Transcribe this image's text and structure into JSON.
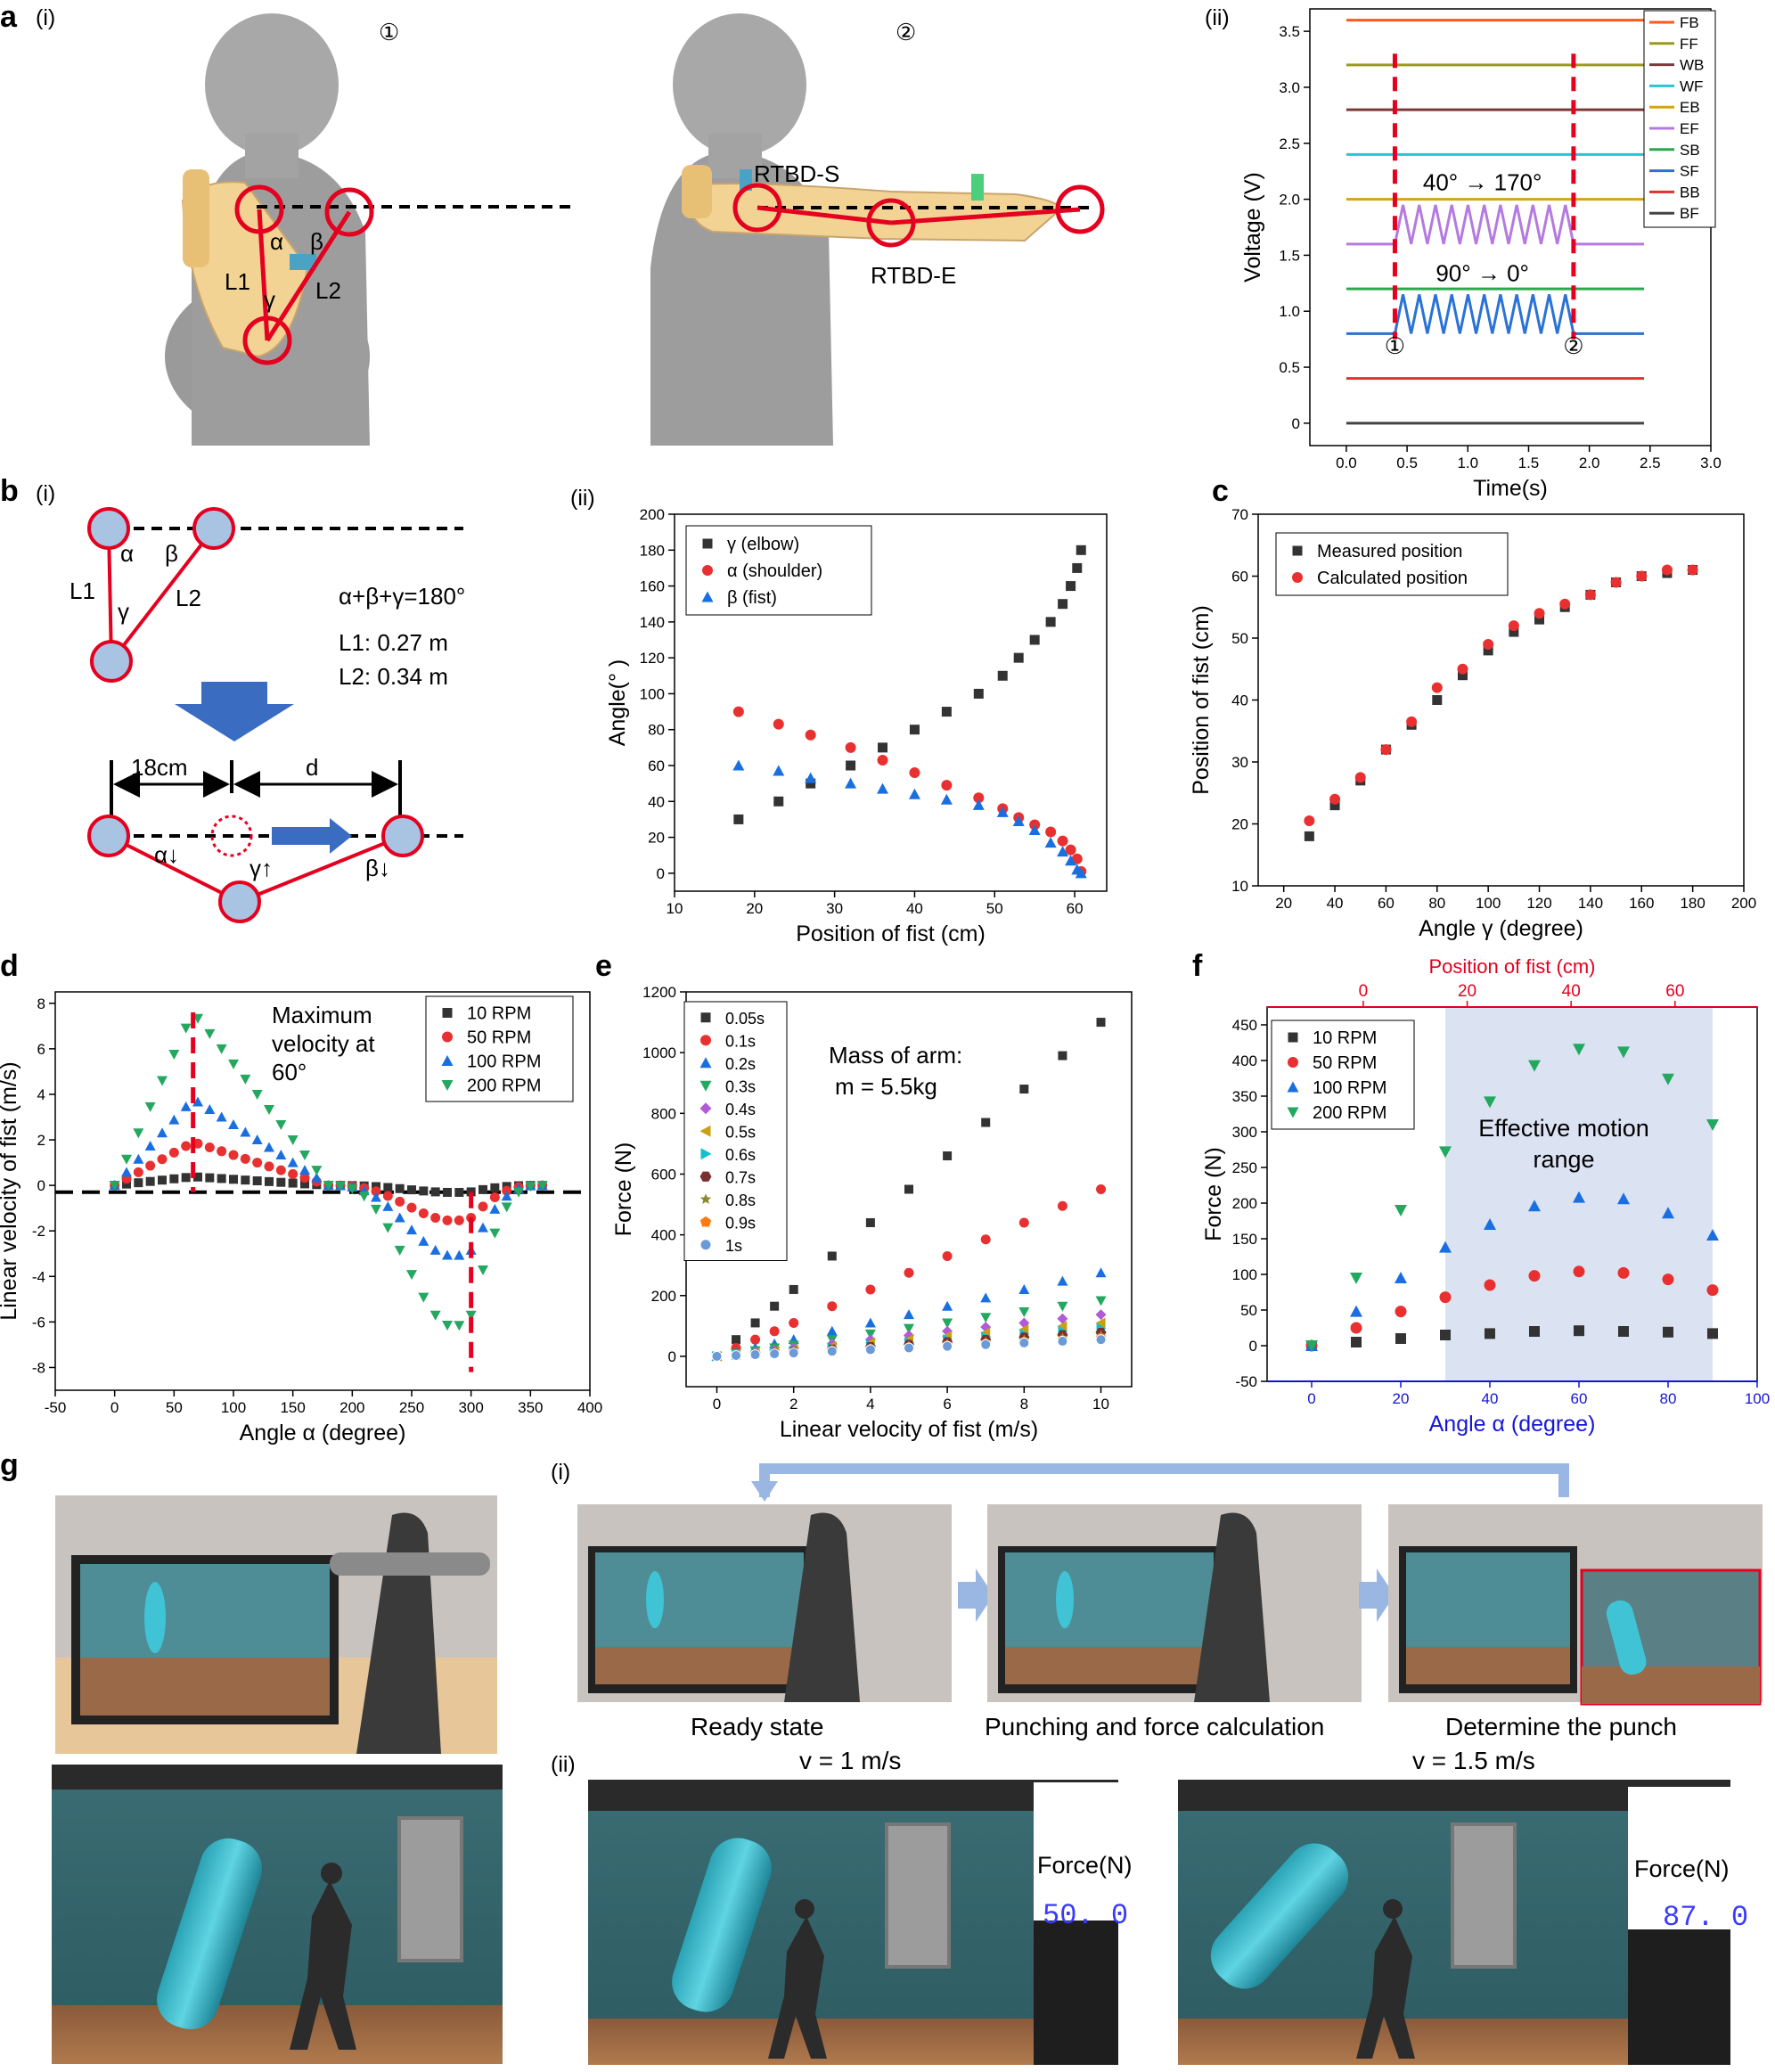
{
  "panels": {
    "a": "a",
    "a_i": "(i)",
    "a_ii": "(ii)",
    "a_circ1": "①",
    "a_circ2": "②",
    "b": "b",
    "b_i": "(i)",
    "b_ii": "(ii)",
    "c": "c",
    "d": "d",
    "e": "e",
    "f": "f",
    "g": "g",
    "g_i": "(i)",
    "g_ii": "(ii)"
  },
  "a_labels": {
    "alpha": "α",
    "beta": "β",
    "gamma": "γ",
    "L1": "L1",
    "L2": "L2",
    "rtbd_s": "RTBD-S",
    "rtbd_e": "RTBD-E"
  },
  "b_i": {
    "alpha": "α",
    "beta": "β",
    "gamma": "γ",
    "L1": "L1",
    "L2": "L2",
    "eq": "α+β+γ=180°",
    "l1": "L1: 0.27 m",
    "l2": "L2: 0.34 m",
    "dist": "18cm",
    "d": "d",
    "alpha_down": "α↓",
    "gamma_up": "γ↑",
    "beta_down": "β↓"
  },
  "g_labels": {
    "ready": "Ready state",
    "punching": "Punching and force calculation",
    "determine": "Determine the punch",
    "v1": "v = 1 m/s",
    "v2": "v = 1.5 m/s",
    "force_label1": "Force(N)",
    "force_label2": "Force(N)",
    "force_val1": "50. 0",
    "force_val2": "87. 0"
  },
  "chart_data": [
    {
      "id": "a_ii",
      "type": "line",
      "xlabel": "Time(s)",
      "ylabel": "Voltage (V)",
      "xlim": [
        -0.3,
        3.0
      ],
      "ylim": [
        -0.2,
        3.7
      ],
      "xticks": [
        "0.0",
        "0.5",
        "1.0",
        "1.5",
        "2.0",
        "2.5",
        "3.0"
      ],
      "yticks": [
        "0",
        "0.5",
        "1.0",
        "1.5",
        "2.0",
        "2.5",
        "3.0",
        "3.5"
      ],
      "legend": [
        "FB",
        "FF",
        "WB",
        "WF",
        "EB",
        "EF",
        "SB",
        "SF",
        "BB",
        "BF"
      ],
      "colors": [
        "#ff5a1e",
        "#9a9a1c",
        "#7a3a3a",
        "#2ac5d2",
        "#d6a21a",
        "#b57ae0",
        "#2aa84a",
        "#2a72d6",
        "#e03030",
        "#444444"
      ],
      "series": [
        {
          "name": "FB",
          "x": [
            0,
            2.45
          ],
          "y": [
            3.6,
            3.6
          ]
        },
        {
          "name": "FF",
          "x": [
            0,
            2.45
          ],
          "y": [
            3.2,
            3.2
          ]
        },
        {
          "name": "WB",
          "x": [
            0,
            2.45
          ],
          "y": [
            2.8,
            2.8
          ]
        },
        {
          "name": "WF",
          "x": [
            0,
            2.45
          ],
          "y": [
            2.4,
            2.4
          ]
        },
        {
          "name": "EB",
          "x": [
            0,
            2.45
          ],
          "y": [
            2.0,
            2.0
          ]
        },
        {
          "name": "EF",
          "baseline": 1.6,
          "osc": [
            0.4,
            1.87
          ],
          "amp": 0.35
        },
        {
          "name": "SB",
          "x": [
            0,
            2.45
          ],
          "y": [
            1.2,
            1.2
          ]
        },
        {
          "name": "SF",
          "baseline": 0.8,
          "osc": [
            0.4,
            1.87
          ],
          "amp": 0.35
        },
        {
          "name": "BB",
          "x": [
            0,
            2.45
          ],
          "y": [
            0.4,
            0.4
          ]
        },
        {
          "name": "BF",
          "x": [
            0,
            2.45
          ],
          "y": [
            0,
            0
          ]
        }
      ],
      "markers": {
        "t1": 0.4,
        "t2": 1.87,
        "label1": "①",
        "label2": "②"
      },
      "annotations": {
        "ef": "40°  → 170°",
        "sf": "90°  → 0°"
      }
    },
    {
      "id": "b_ii",
      "type": "scatter",
      "xlabel": "Position of fist (cm)",
      "ylabel": "Angle(° )",
      "xlim": [
        10,
        64
      ],
      "ylim": [
        -10,
        200
      ],
      "xticks": [
        10,
        20,
        30,
        40,
        50,
        60
      ],
      "yticks": [
        0,
        20,
        40,
        60,
        80,
        100,
        120,
        140,
        160,
        180,
        200
      ],
      "series": [
        {
          "name": "γ (elbow)",
          "color": "#333333",
          "marker": "square",
          "x": [
            18,
            23,
            27,
            32,
            36,
            40,
            44,
            48,
            51,
            53,
            55,
            57,
            58.5,
            59.5,
            60.3,
            60.8
          ],
          "y": [
            30,
            40,
            50,
            60,
            70,
            80,
            90,
            100,
            110,
            120,
            130,
            140,
            150,
            160,
            170,
            180
          ]
        },
        {
          "name": "α (shoulder)",
          "color": "#e83030",
          "marker": "circle",
          "x": [
            18,
            23,
            27,
            32,
            36,
            40,
            44,
            48,
            51,
            53,
            55,
            57,
            58.5,
            59.5,
            60.3,
            60.8
          ],
          "y": [
            90,
            83,
            77,
            70,
            63,
            56,
            49,
            42,
            36,
            31,
            27,
            23,
            18,
            13,
            8,
            1
          ]
        },
        {
          "name": "β (fist)",
          "color": "#1a6fe0",
          "marker": "triangle",
          "x": [
            18,
            23,
            27,
            32,
            36,
            40,
            44,
            48,
            51,
            53,
            55,
            57,
            58.5,
            59.5,
            60.3,
            60.8
          ],
          "y": [
            60,
            57,
            53,
            50,
            47,
            44,
            41,
            38,
            34,
            29,
            24,
            17,
            12,
            7,
            2,
            0
          ]
        }
      ]
    },
    {
      "id": "c",
      "type": "scatter",
      "xlabel": "Angle γ (degree)",
      "ylabel": "Position of fist (cm)",
      "xlim": [
        10,
        200
      ],
      "ylim": [
        10,
        70
      ],
      "xticks": [
        20,
        40,
        60,
        80,
        100,
        120,
        140,
        160,
        180,
        200
      ],
      "yticks": [
        10,
        20,
        30,
        40,
        50,
        60,
        70
      ],
      "series": [
        {
          "name": "Measured position",
          "color": "#333333",
          "marker": "square",
          "x": [
            30,
            40,
            50,
            60,
            70,
            80,
            90,
            100,
            110,
            120,
            130,
            140,
            150,
            160,
            170,
            180
          ],
          "y": [
            18,
            23,
            27,
            32,
            36,
            40,
            44,
            48,
            51,
            53,
            55,
            57,
            59,
            60,
            60.5,
            61
          ]
        },
        {
          "name": "Calculated position",
          "color": "#e83030",
          "marker": "circle",
          "x": [
            30,
            40,
            50,
            60,
            70,
            80,
            90,
            100,
            110,
            120,
            130,
            140,
            150,
            160,
            170,
            180
          ],
          "y": [
            20.5,
            24,
            27.5,
            32,
            36.5,
            42,
            45,
            49,
            52,
            54,
            55.5,
            57,
            59,
            60,
            61,
            61
          ]
        }
      ]
    },
    {
      "id": "d",
      "type": "scatter",
      "xlabel": "Angle α (degree)",
      "ylabel": "Linear velocity of fist (m/s)",
      "xlim": [
        -50,
        400
      ],
      "ylim": [
        -9,
        8.5
      ],
      "xticks": [
        -50,
        0,
        50,
        100,
        150,
        200,
        250,
        300,
        350,
        400
      ],
      "yticks": [
        -8,
        -6,
        -4,
        -2,
        0,
        2,
        4,
        6,
        8
      ],
      "annotation": "Maximum velocity at 60°",
      "vlines": [
        66,
        300
      ],
      "series": [
        {
          "name": "10 RPM",
          "color": "#333333",
          "marker": "square",
          "peak": 0.38
        },
        {
          "name": "50 RPM",
          "color": "#e83030",
          "marker": "circle",
          "peak": 1.9
        },
        {
          "name": "100 RPM",
          "color": "#1a6fe0",
          "marker": "triangle",
          "peak": 3.8
        },
        {
          "name": "200 RPM",
          "color": "#23a860",
          "marker": "triangle-down",
          "peak": 7.6
        }
      ]
    },
    {
      "id": "e",
      "type": "scatter",
      "xlabel": "Linear velocity of fist (m/s)",
      "ylabel": "Force (N)",
      "xlim": [
        -0.8,
        10.8
      ],
      "ylim": [
        -100,
        1200
      ],
      "xticks": [
        0,
        2,
        4,
        6,
        8,
        10
      ],
      "yticks": [
        0,
        200,
        400,
        600,
        800,
        1000,
        1200
      ],
      "annotation": "Mass of arm: m = 5.5kg",
      "x": [
        0,
        0.5,
        1,
        1.5,
        2,
        3,
        4,
        5,
        6,
        7,
        8,
        9,
        10
      ],
      "series": [
        {
          "name": "0.05s",
          "color": "#333333",
          "marker": "square",
          "t": 0.05
        },
        {
          "name": "0.1s",
          "color": "#e83030",
          "marker": "circle",
          "t": 0.1
        },
        {
          "name": "0.2s",
          "color": "#1a6fe0",
          "marker": "triangle",
          "t": 0.2
        },
        {
          "name": "0.3s",
          "color": "#23a860",
          "marker": "triangle-down",
          "t": 0.3
        },
        {
          "name": "0.4s",
          "color": "#b25ad8",
          "marker": "diamond",
          "t": 0.4
        },
        {
          "name": "0.5s",
          "color": "#c8a010",
          "marker": "triangle-left",
          "t": 0.5
        },
        {
          "name": "0.6s",
          "color": "#10c0d0",
          "marker": "triangle-right",
          "t": 0.6
        },
        {
          "name": "0.7s",
          "color": "#7a3030",
          "marker": "hexagon",
          "t": 0.7
        },
        {
          "name": "0.8s",
          "color": "#8a8a2a",
          "marker": "star",
          "t": 0.8
        },
        {
          "name": "0.9s",
          "color": "#ff7a10",
          "marker": "pentagon",
          "t": 0.9
        },
        {
          "name": "1s",
          "color": "#6a9ad8",
          "marker": "sphere",
          "t": 1.0
        }
      ]
    },
    {
      "id": "f",
      "type": "scatter",
      "xlabel": "Angle α (degree)",
      "x2label": "Position of fist (cm)",
      "ylabel": "Force (N)",
      "xlim": [
        -10,
        100
      ],
      "x2lim": [
        -18.5,
        75.8
      ],
      "ylim": [
        -50,
        475
      ],
      "xticks": [
        0,
        20,
        40,
        60,
        80,
        100
      ],
      "x2ticks": [
        0,
        20,
        40,
        60
      ],
      "yticks": [
        -50,
        0,
        50,
        100,
        150,
        200,
        250,
        300,
        350,
        400,
        450
      ],
      "shade": [
        30,
        90
      ],
      "annotation": "Effective motion range",
      "x": [
        0,
        10,
        20,
        30,
        40,
        50,
        60,
        70,
        80,
        90
      ],
      "series": [
        {
          "name": "10 RPM",
          "color": "#333333",
          "marker": "square",
          "y": [
            0,
            5,
            10,
            15,
            17,
            20,
            21,
            20,
            19,
            17
          ]
        },
        {
          "name": "50 RPM",
          "color": "#e83030",
          "marker": "circle",
          "y": [
            0,
            25,
            48,
            68,
            85,
            98,
            104,
            102,
            93,
            78
          ]
        },
        {
          "name": "100 RPM",
          "color": "#1a6fe0",
          "marker": "triangle",
          "y": [
            0,
            48,
            95,
            138,
            170,
            196,
            208,
            206,
            186,
            155
          ]
        },
        {
          "name": "200 RPM",
          "color": "#23a860",
          "marker": "triangle-down",
          "y": [
            0,
            95,
            190,
            272,
            342,
            393,
            416,
            412,
            374,
            310
          ]
        }
      ]
    }
  ]
}
